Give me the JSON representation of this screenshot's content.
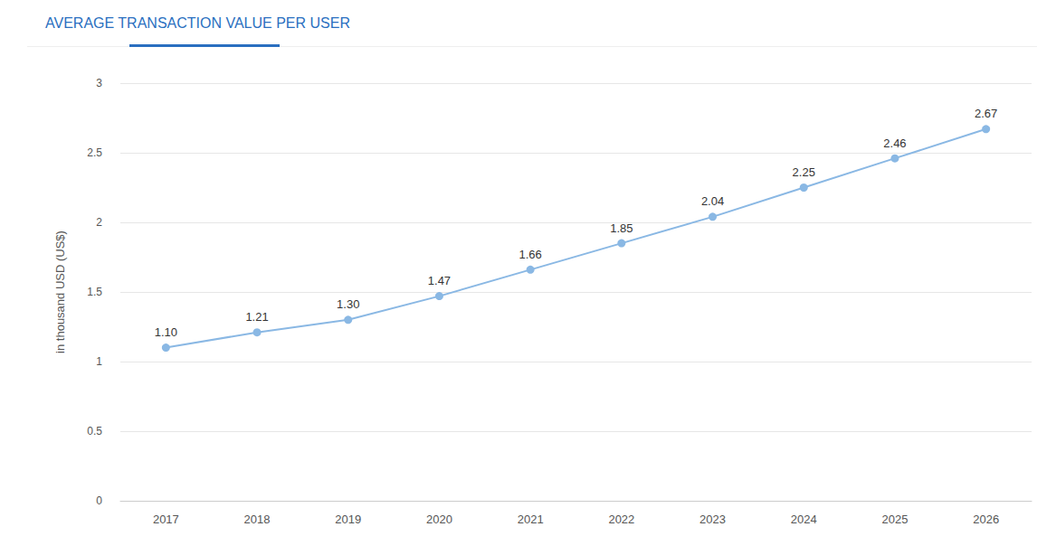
{
  "chart_data": {
    "type": "line",
    "title": "AVERAGE TRANSACTION VALUE PER USER",
    "y_label": "in thousand USD (US$)",
    "categories": [
      "2017",
      "2018",
      "2019",
      "2020",
      "2021",
      "2022",
      "2023",
      "2024",
      "2025",
      "2026"
    ],
    "values": [
      1.1,
      1.21,
      1.3,
      1.47,
      1.66,
      1.85,
      2.04,
      2.25,
      2.46,
      2.67
    ],
    "value_labels": [
      "1.10",
      "1.21",
      "1.30",
      "1.47",
      "1.66",
      "1.85",
      "2.04",
      "2.25",
      "2.46",
      "2.67"
    ],
    "color": "#8ab8e4",
    "ylim": [
      0,
      3
    ],
    "yticks": [
      0,
      0.5,
      1,
      1.5,
      2,
      2.5,
      3
    ],
    "grid": true,
    "data_labels": true,
    "marker": "circle"
  }
}
